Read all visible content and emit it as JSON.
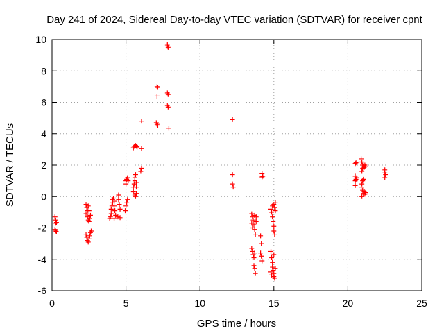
{
  "chart_data": {
    "type": "scatter",
    "title": "Day 241 of 2024, Sidereal Day-to-day VTEC variation (SDTVAR) for receiver cpnt",
    "xlabel": "GPS time / hours",
    "ylabel": "SDTVAR / TECUs",
    "xlim": [
      0,
      25
    ],
    "ylim": [
      -6,
      10
    ],
    "xticks": [
      0,
      5,
      10,
      15,
      20,
      25
    ],
    "yticks": [
      -6,
      -4,
      -2,
      0,
      2,
      4,
      6,
      8,
      10
    ],
    "grid": true,
    "marker": "+",
    "series": [
      {
        "name": "SDTVAR",
        "color": "#ff0000",
        "points": [
          [
            0.2,
            -1.3
          ],
          [
            0.25,
            -1.5
          ],
          [
            0.25,
            -1.7
          ],
          [
            0.3,
            -1.65
          ],
          [
            0.2,
            -2.1
          ],
          [
            0.3,
            -2.25
          ],
          [
            0.25,
            -2.2
          ],
          [
            2.3,
            -0.5
          ],
          [
            2.35,
            -0.7
          ],
          [
            2.4,
            -0.9
          ],
          [
            2.3,
            -1.1
          ],
          [
            2.4,
            -1.3
          ],
          [
            2.45,
            -1.5
          ],
          [
            2.5,
            -1.6
          ],
          [
            2.55,
            -1.4
          ],
          [
            2.6,
            -1.2
          ],
          [
            2.5,
            -0.9
          ],
          [
            2.45,
            -0.6
          ],
          [
            2.3,
            -2.4
          ],
          [
            2.35,
            -2.6
          ],
          [
            2.4,
            -2.8
          ],
          [
            2.45,
            -2.9
          ],
          [
            2.5,
            -2.7
          ],
          [
            2.55,
            -2.5
          ],
          [
            2.6,
            -2.3
          ],
          [
            2.65,
            -2.2
          ],
          [
            3.9,
            -1.4
          ],
          [
            3.95,
            -1.3
          ],
          [
            4.0,
            -1.1
          ],
          [
            4.0,
            -0.8
          ],
          [
            4.05,
            -0.6
          ],
          [
            4.1,
            -0.4
          ],
          [
            4.1,
            -0.2
          ],
          [
            4.15,
            -0.1
          ],
          [
            4.2,
            -0.3
          ],
          [
            4.2,
            -0.6
          ],
          [
            4.25,
            -0.9
          ],
          [
            4.3,
            -1.2
          ],
          [
            4.2,
            -1.4
          ],
          [
            4.5,
            -0.2
          ],
          [
            4.5,
            0.1
          ],
          [
            4.55,
            -0.5
          ],
          [
            4.6,
            -0.8
          ],
          [
            4.45,
            -1.3
          ],
          [
            4.6,
            -1.35
          ],
          [
            5.0,
            0.8
          ],
          [
            5.0,
            1.0
          ],
          [
            5.05,
            1.1
          ],
          [
            5.1,
            1.2
          ],
          [
            5.15,
            1.0
          ],
          [
            4.95,
            -0.9
          ],
          [
            5.0,
            -0.6
          ],
          [
            5.05,
            -0.4
          ],
          [
            5.1,
            -0.2
          ],
          [
            5.5,
            0.3
          ],
          [
            5.5,
            0.6
          ],
          [
            5.55,
            0.8
          ],
          [
            5.6,
            1.0
          ],
          [
            5.6,
            1.2
          ],
          [
            5.65,
            1.4
          ],
          [
            5.7,
            0.9
          ],
          [
            5.7,
            0.6
          ],
          [
            5.6,
            0.1
          ],
          [
            5.65,
            0.0
          ],
          [
            5.7,
            0.2
          ],
          [
            5.5,
            3.1
          ],
          [
            5.55,
            3.2
          ],
          [
            5.6,
            3.2
          ],
          [
            5.65,
            3.25
          ],
          [
            5.7,
            3.2
          ],
          [
            5.75,
            3.15
          ],
          [
            6.05,
            3.05
          ],
          [
            6.05,
            4.8
          ],
          [
            6.0,
            1.6
          ],
          [
            6.05,
            1.8
          ],
          [
            7.1,
            7.0
          ],
          [
            7.15,
            6.95
          ],
          [
            7.1,
            6.4
          ],
          [
            7.05,
            4.7
          ],
          [
            7.1,
            4.6
          ],
          [
            7.15,
            4.5
          ],
          [
            7.8,
            9.7
          ],
          [
            7.8,
            9.6
          ],
          [
            7.85,
            9.5
          ],
          [
            7.8,
            6.6
          ],
          [
            7.85,
            6.5
          ],
          [
            7.8,
            5.8
          ],
          [
            7.85,
            5.7
          ],
          [
            7.9,
            4.35
          ],
          [
            12.2,
            4.9
          ],
          [
            12.2,
            1.4
          ],
          [
            12.2,
            0.8
          ],
          [
            12.25,
            0.6
          ],
          [
            13.5,
            -1.1
          ],
          [
            13.55,
            -1.3
          ],
          [
            13.6,
            -1.5
          ],
          [
            13.65,
            -1.8
          ],
          [
            13.7,
            -2.1
          ],
          [
            13.75,
            -2.4
          ],
          [
            13.55,
            -2.0
          ],
          [
            13.5,
            -1.7
          ],
          [
            13.8,
            -1.6
          ],
          [
            13.8,
            -1.3
          ],
          [
            13.7,
            -1.2
          ],
          [
            13.5,
            -3.3
          ],
          [
            13.55,
            -3.5
          ],
          [
            13.6,
            -3.7
          ],
          [
            13.65,
            -3.9
          ],
          [
            13.7,
            -3.6
          ],
          [
            13.65,
            -4.4
          ],
          [
            13.7,
            -4.6
          ],
          [
            13.75,
            -4.9
          ],
          [
            14.2,
            1.45
          ],
          [
            14.2,
            1.25
          ],
          [
            14.25,
            1.3
          ],
          [
            14.1,
            -2.5
          ],
          [
            14.15,
            -3.0
          ],
          [
            14.1,
            -3.6
          ],
          [
            14.15,
            -3.8
          ],
          [
            14.2,
            -4.1
          ],
          [
            14.8,
            -3.5
          ],
          [
            14.85,
            -3.9
          ],
          [
            14.9,
            -4.2
          ],
          [
            14.9,
            -4.5
          ],
          [
            14.95,
            -4.7
          ],
          [
            15.0,
            -4.9
          ],
          [
            15.0,
            -5.1
          ],
          [
            15.05,
            -5.2
          ],
          [
            14.8,
            -4.8
          ],
          [
            14.85,
            -5.0
          ],
          [
            15.1,
            -4.6
          ],
          [
            15.0,
            -3.7
          ],
          [
            14.8,
            -0.8
          ],
          [
            14.85,
            -1.0
          ],
          [
            14.9,
            -1.3
          ],
          [
            14.95,
            -1.6
          ],
          [
            15.0,
            -1.9
          ],
          [
            15.0,
            -2.2
          ],
          [
            15.05,
            -2.4
          ],
          [
            14.9,
            -0.6
          ],
          [
            15.0,
            -0.5
          ],
          [
            15.05,
            -0.7
          ],
          [
            15.1,
            -0.9
          ],
          [
            15.1,
            -0.4
          ],
          [
            20.5,
            2.1
          ],
          [
            20.55,
            2.15
          ],
          [
            20.5,
            1.3
          ],
          [
            20.55,
            1.1
          ],
          [
            20.5,
            1.0
          ],
          [
            20.6,
            1.2
          ],
          [
            20.5,
            0.7
          ],
          [
            20.9,
            2.4
          ],
          [
            20.95,
            2.2
          ],
          [
            21.0,
            2.0
          ],
          [
            21.0,
            1.8
          ],
          [
            21.05,
            1.9
          ],
          [
            21.1,
            1.85
          ],
          [
            21.15,
            2.0
          ],
          [
            21.2,
            1.9
          ],
          [
            20.95,
            1.6
          ],
          [
            20.9,
            0.6
          ],
          [
            20.95,
            0.8
          ],
          [
            21.0,
            1.0
          ],
          [
            21.05,
            1.1
          ],
          [
            21.0,
            0.4
          ],
          [
            21.05,
            0.2
          ],
          [
            21.1,
            0.3
          ],
          [
            21.15,
            0.15
          ],
          [
            21.2,
            0.25
          ],
          [
            20.95,
            0.0
          ],
          [
            22.5,
            1.7
          ],
          [
            22.5,
            1.5
          ],
          [
            22.55,
            1.4
          ],
          [
            22.5,
            1.2
          ]
        ]
      }
    ]
  }
}
